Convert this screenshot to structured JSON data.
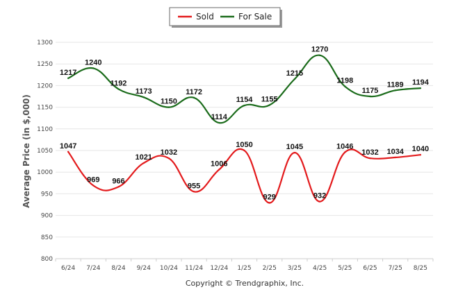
{
  "chart_data": {
    "type": "line",
    "categories": [
      "6/24",
      "7/24",
      "8/24",
      "9/24",
      "10/24",
      "11/24",
      "12/24",
      "1/25",
      "2/25",
      "3/25",
      "4/25",
      "5/25",
      "6/25",
      "7/25",
      "8/25"
    ],
    "series": [
      {
        "name": "Sold",
        "color": "#e31a1c",
        "values": [
          1047,
          969,
          966,
          1021,
          1032,
          955,
          1006,
          1050,
          929,
          1045,
          932,
          1046,
          1032,
          1034,
          1040
        ]
      },
      {
        "name": "For Sale",
        "color": "#1a6b1a",
        "values": [
          1217,
          1240,
          1192,
          1173,
          1150,
          1172,
          1114,
          1154,
          1155,
          1215,
          1270,
          1198,
          1175,
          1189,
          1194
        ]
      }
    ],
    "ylabel": "Average Price (in $,000)",
    "yticks": [
      800,
      850,
      900,
      950,
      1000,
      1050,
      1100,
      1150,
      1200,
      1250,
      1300
    ],
    "ylim": [
      800,
      1300
    ],
    "grid": true,
    "legend_position": "top-center",
    "smooth": true
  },
  "footer": "Copyright © Trendgraphix, Inc."
}
